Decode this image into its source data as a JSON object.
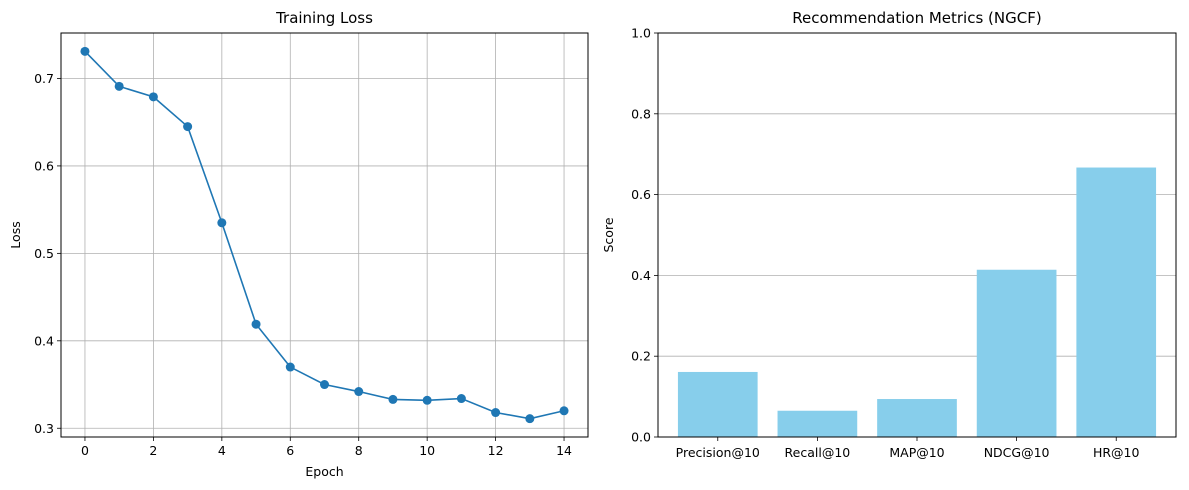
{
  "chart_data": [
    {
      "type": "line",
      "title": "Training Loss",
      "xlabel": "Epoch",
      "ylabel": "Loss",
      "xlim": [
        -0.7,
        14.7
      ],
      "ylim": [
        0.29,
        0.752
      ],
      "xticks": [
        0,
        2,
        4,
        6,
        8,
        10,
        12,
        14
      ],
      "xtick_labels": [
        "0",
        "2",
        "4",
        "6",
        "8",
        "10",
        "12",
        "14"
      ],
      "yticks": [
        0.3,
        0.4,
        0.5,
        0.6,
        0.7
      ],
      "ytick_labels": [
        "0.3",
        "0.4",
        "0.5",
        "0.6",
        "0.7"
      ],
      "grid": true,
      "color": "#1f77b4",
      "x": [
        0,
        1,
        2,
        3,
        4,
        5,
        6,
        7,
        8,
        9,
        10,
        11,
        12,
        13,
        14
      ],
      "y": [
        0.731,
        0.691,
        0.679,
        0.645,
        0.535,
        0.419,
        0.37,
        0.35,
        0.342,
        0.333,
        0.332,
        0.334,
        0.318,
        0.311,
        0.32
      ]
    },
    {
      "type": "bar",
      "title": "Recommendation Metrics (NGCF)",
      "xlabel": "",
      "ylabel": "Score",
      "ylim": [
        0,
        1.0
      ],
      "yticks": [
        0.0,
        0.2,
        0.4,
        0.6,
        0.8,
        1.0
      ],
      "ytick_labels": [
        "0.0",
        "0.2",
        "0.4",
        "0.6",
        "0.8",
        "1.0"
      ],
      "grid": "y",
      "color": "#87ceeb",
      "categories": [
        "Precision@10",
        "Recall@10",
        "MAP@10",
        "NDCG@10",
        "HR@10"
      ],
      "values": [
        0.161,
        0.065,
        0.094,
        0.414,
        0.667
      ]
    }
  ]
}
